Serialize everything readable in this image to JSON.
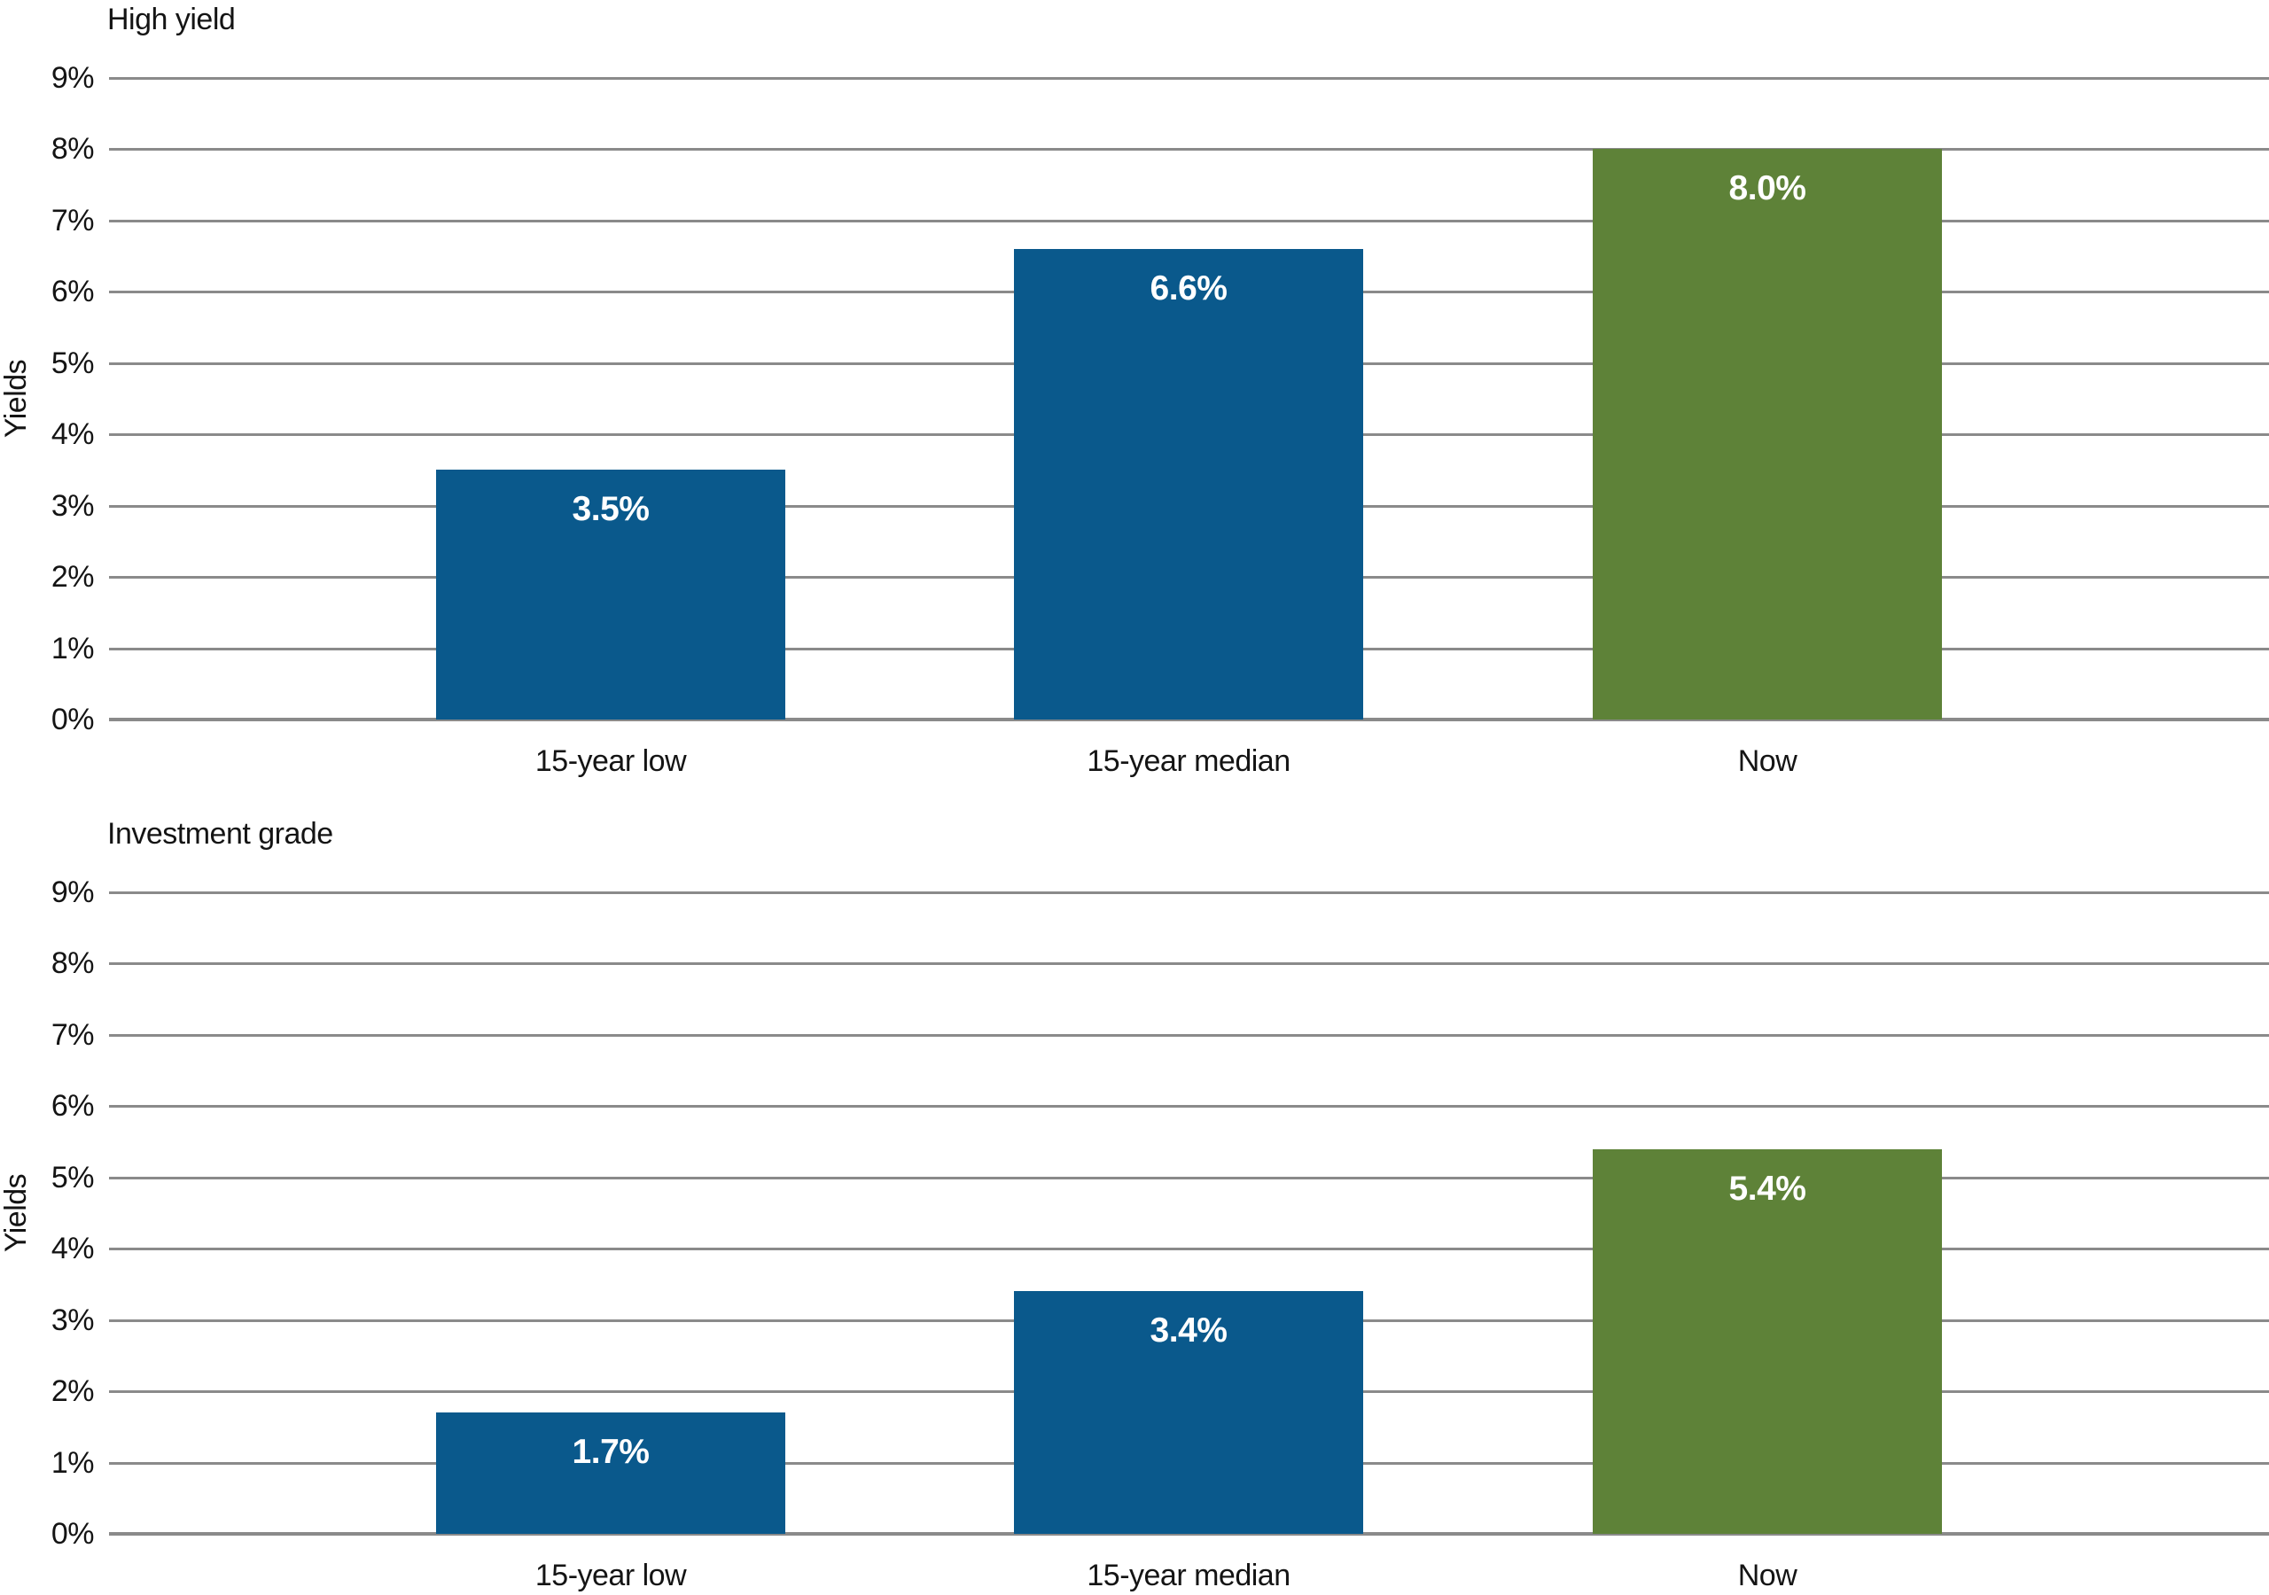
{
  "colors": {
    "bar_blue": "#0A598C",
    "bar_green": "#5E8238",
    "gridline": "#8A8A8A",
    "text": "#141414",
    "data_label": "#FFFFFF"
  },
  "chart_data": [
    {
      "type": "bar",
      "title": "High yield",
      "ylabel": "Yields",
      "categories": [
        "15-year low",
        "15-year median",
        "Now"
      ],
      "values": [
        3.5,
        6.6,
        8.0
      ],
      "value_labels": [
        "3.5%",
        "6.6%",
        "8.0%"
      ],
      "bar_colors": [
        "#0A598C",
        "#0A598C",
        "#5E8238"
      ],
      "ylim": [
        0,
        9
      ],
      "ytick_step": 1,
      "ytick_labels": [
        "0%",
        "1%",
        "2%",
        "3%",
        "4%",
        "5%",
        "6%",
        "7%",
        "8%",
        "9%"
      ],
      "grid": true,
      "legend": "none"
    },
    {
      "type": "bar",
      "title": "Investment grade",
      "ylabel": "Yields",
      "categories": [
        "15-year low",
        "15-year median",
        "Now"
      ],
      "values": [
        1.7,
        3.4,
        5.4
      ],
      "value_labels": [
        "1.7%",
        "3.4%",
        "5.4%"
      ],
      "bar_colors": [
        "#0A598C",
        "#0A598C",
        "#5E8238"
      ],
      "ylim": [
        0,
        9
      ],
      "ytick_step": 1,
      "ytick_labels": [
        "0%",
        "1%",
        "2%",
        "3%",
        "4%",
        "5%",
        "6%",
        "7%",
        "8%",
        "9%"
      ],
      "grid": true,
      "legend": "none"
    }
  ]
}
